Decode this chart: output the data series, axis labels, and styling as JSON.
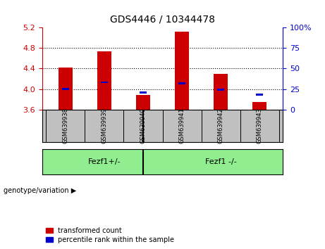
{
  "title": "GDS4446 / 10344478",
  "samples": [
    "GSM639938",
    "GSM639939",
    "GSM639940",
    "GSM639941",
    "GSM639942",
    "GSM639943"
  ],
  "transformed_counts": [
    4.42,
    4.74,
    3.88,
    5.12,
    4.3,
    3.75
  ],
  "percentile_ranks": [
    25,
    33,
    21,
    32,
    24,
    18
  ],
  "ylim_left": [
    3.6,
    5.2
  ],
  "ylim_right": [
    0,
    100
  ],
  "yticks_left": [
    3.6,
    4.0,
    4.4,
    4.8,
    5.2
  ],
  "yticks_right": [
    0,
    25,
    50,
    75,
    100
  ],
  "group_labels": [
    "Fezf1+/-",
    "Fezf1 -/-"
  ],
  "group_divider_idx": 2.5,
  "bar_width": 0.35,
  "red_color": "#CC0000",
  "blue_color": "#0000CC",
  "left_axis_color": "#CC0000",
  "right_axis_color": "#0000CC",
  "grid_color": "black",
  "background_plot": "#FFFFFF",
  "background_label": "#C0C0C0",
  "background_group": "#90EE90",
  "legend_items": [
    "transformed count",
    "percentile rank within the sample"
  ],
  "genotype_label": "genotype/variation",
  "bar_base": 3.6
}
